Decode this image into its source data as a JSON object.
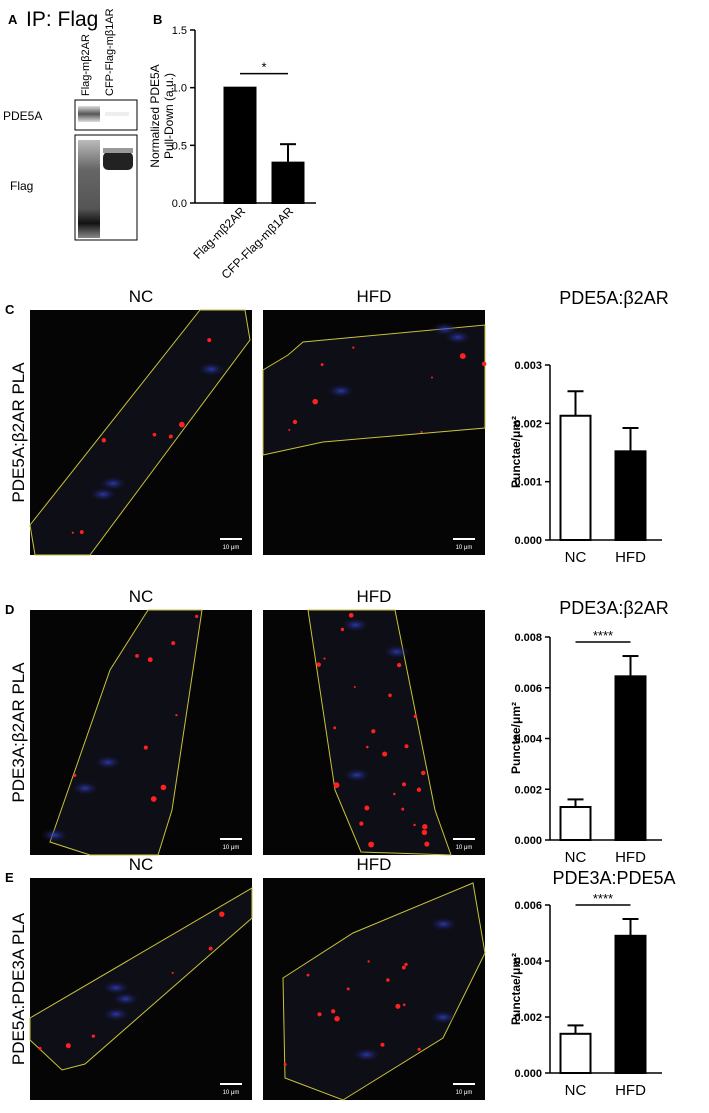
{
  "figure": {
    "panel_A": {
      "letter": "A",
      "title": "IP: Flag",
      "lanes": [
        "Flag-mβ2AR",
        "CFP-Flag-mβ1AR"
      ],
      "blots": [
        "PDE5A",
        "Flag"
      ]
    },
    "panel_B": {
      "letter": "B"
    },
    "rows": [
      {
        "letter": "C",
        "label": "PDE5A:β2AR PLA",
        "columns": [
          "NC",
          "HFD"
        ],
        "scale_bars": [
          "10 μm",
          "10 μm"
        ]
      },
      {
        "letter": "D",
        "label": "PDE3A:β2AR PLA",
        "columns": [
          "NC",
          "HFD"
        ],
        "scale_bars": [
          "10 μm",
          "10 μm"
        ]
      },
      {
        "letter": "E",
        "label": "PDE5A:PDE3A PLA",
        "columns": [
          "NC",
          "HFD"
        ],
        "scale_bars": [
          "10 μm",
          "10 μm"
        ]
      }
    ]
  },
  "chart_data": [
    {
      "type": "bar",
      "y_label": [
        "Normalized  PDE5A",
        "Pull-Down (a.u.)"
      ],
      "categories": [
        "Flag-mβ2AR",
        "CFP-Flag-mβ1AR"
      ],
      "values": [
        1.0,
        0.35
      ],
      "errors": [
        0,
        0.16
      ],
      "colors": [
        "#000000",
        "#000000"
      ],
      "ylim": [
        0,
        1.5
      ],
      "yticks": [
        {
          "value": 0,
          "label": "0.0"
        },
        {
          "value": 0.5,
          "label": "0.5"
        },
        {
          "value": 1,
          "label": "1.0"
        },
        {
          "value": 1.5,
          "label": "1.5"
        }
      ],
      "significance": "*"
    },
    {
      "type": "bar",
      "title": "PDE5A:β2AR",
      "y_label": [
        "Punctae/μm²"
      ],
      "categories": [
        "NC",
        "HFD"
      ],
      "values": [
        0.00213,
        0.00152
      ],
      "errors": [
        0.00042,
        0.0004
      ],
      "colors": [
        "#ffffff",
        "#000000"
      ],
      "ylim": [
        0,
        0.003
      ],
      "yticks": [
        {
          "value": 0,
          "label": "0.000"
        },
        0.001,
        0.002,
        0.003
      ]
    },
    {
      "type": "bar",
      "title": "PDE3A:β2AR",
      "y_label": [
        "Punctae/μm²"
      ],
      "categories": [
        "NC",
        "HFD"
      ],
      "values": [
        0.0013,
        0.00645
      ],
      "errors": [
        0.0003,
        0.0008
      ],
      "colors": [
        "#ffffff",
        "#000000"
      ],
      "ylim": [
        0,
        0.008
      ],
      "yticks": [
        {
          "value": 0,
          "label": "0.000"
        },
        0.002,
        0.004,
        0.006,
        0.008
      ],
      "significance": "****"
    },
    {
      "type": "bar",
      "title": "PDE3A:PDE5A",
      "y_label": [
        "Punctae/μm²"
      ],
      "categories": [
        "NC",
        "HFD"
      ],
      "values": [
        0.0014,
        0.0049
      ],
      "errors": [
        0.0003,
        0.0006
      ],
      "colors": [
        "#ffffff",
        "#000000"
      ],
      "ylim": [
        0,
        0.006
      ],
      "yticks": [
        {
          "value": 0,
          "label": "0.000"
        },
        0.002,
        0.004,
        0.006
      ],
      "significance": "****"
    }
  ]
}
